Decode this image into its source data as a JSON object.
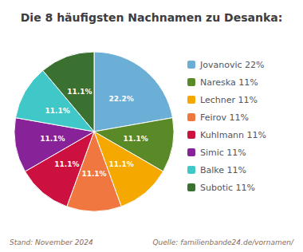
{
  "chart_data": {
    "type": "pie",
    "title": "Die 8 häufigsten Nachnamen zu Desanka:",
    "categories": [
      "Jovanovic 22%",
      "Nareska 11%",
      "Lechner 11%",
      "Feirov 11%",
      "Kuhlmann 11%",
      "Simic 11%",
      "Balke 11%",
      "Subotic 11%"
    ],
    "values": [
      22.2,
      11.1,
      11.1,
      11.1,
      11.1,
      11.1,
      11.1,
      11.1
    ],
    "value_labels": [
      "22.2%",
      "11.1%",
      "11.1%",
      "11.1%",
      "11.1%",
      "11.1%",
      "11.1%",
      "11.1%"
    ],
    "data_labels": true,
    "colors": [
      "#6BAED6",
      "#5A8A28",
      "#F5A800",
      "#F07840",
      "#CC1040",
      "#882299",
      "#40C8C8",
      "#3A7030"
    ],
    "legend": "right",
    "annotations": [
      "Stand: November 2024",
      "Quelle: familienbande24.de/vornamen/"
    ]
  }
}
